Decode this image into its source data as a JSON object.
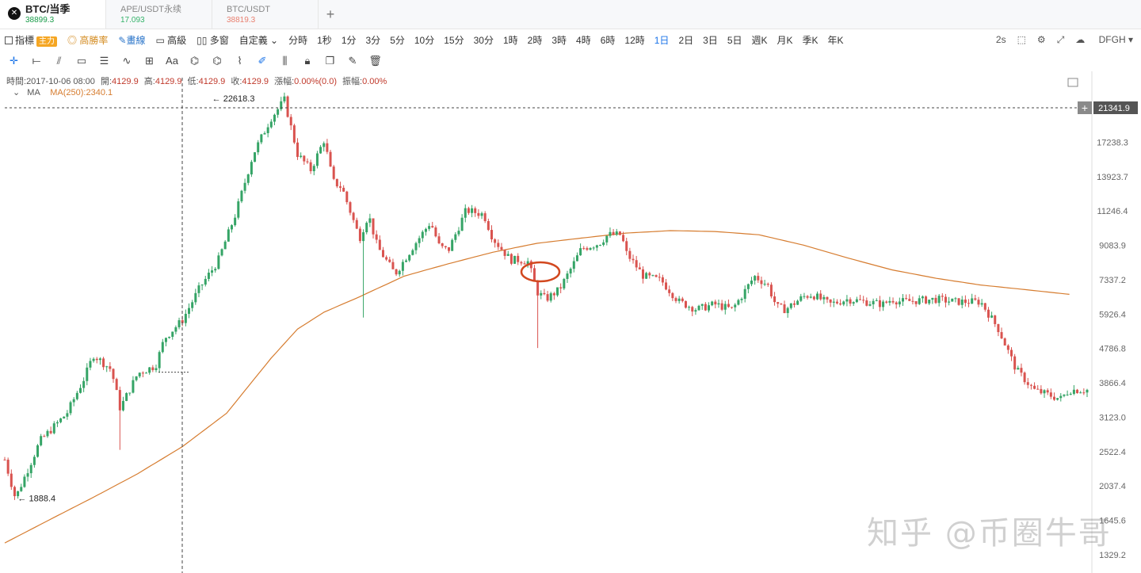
{
  "tabs": [
    {
      "name": "BTC/当季",
      "price": "38899.3",
      "price_color": "#1a9c4a"
    },
    {
      "name": "APE/USDT永续",
      "price": "17.093",
      "price_color": "#35b36a"
    },
    {
      "name": "BTC/USDT",
      "price": "38819.3",
      "price_color": "#e98070"
    }
  ],
  "toolbar": {
    "indicator": "指標",
    "main_badge": "主力",
    "win_rate": "高勝率",
    "draw": "畫線",
    "advanced": "高級",
    "multi_window": "多窗",
    "custom": "自定義",
    "periods": [
      "分時",
      "1秒",
      "1分",
      "3分",
      "5分",
      "10分",
      "15分",
      "30分",
      "1時",
      "2時",
      "3時",
      "4時",
      "6時",
      "12時",
      "1日",
      "2日",
      "3日",
      "5日",
      "週K",
      "月K",
      "季K",
      "年K"
    ],
    "active_period": "1日",
    "refresh": "2s",
    "account": "DFGH"
  },
  "drawing_tools": [
    "crosshair-icon",
    "horizontal-line-icon",
    "parallel-lines-icon",
    "rectangle-icon",
    "fib-icon",
    "wave-icon",
    "measure-icon",
    "text-icon",
    "brush-icon",
    "highlighter-icon",
    "ruler-icon",
    "pen-icon",
    "candles-icon",
    "lock-icon",
    "copy-icon",
    "note-icon",
    "trash-icon"
  ],
  "info": {
    "time_label": "時間:",
    "time": "2017-10-06 08:00",
    "open_label": "開:",
    "open": "4129.9",
    "high_label": "高:",
    "high": "4129.9",
    "low_label": "低:",
    "low": "4129.9",
    "close_label": "收:",
    "close": "4129.9",
    "change_label": "漲幅:",
    "change": "0.00%(0.0)",
    "amp_label": "振幅:",
    "amp": "0.00%"
  },
  "ma": {
    "label": "MA",
    "value": "MA(250):2340.1"
  },
  "watermark": "知乎 @币圈牛哥",
  "chart_data": {
    "type": "candlestick",
    "y_scale": "log",
    "y_ticks": [
      21341.9,
      17238.3,
      13923.7,
      11246.4,
      9083.9,
      7337.2,
      5926.4,
      4786.8,
      3866.4,
      3123.0,
      2522.4,
      2037.4,
      1645.6,
      1329.2
    ],
    "y_tick_labels": [
      "21341.9",
      "17238.3",
      "13923.7",
      "11246.4",
      "9083.9",
      "7337.2",
      "5926.4",
      "4786.8",
      "3866.4",
      "3123.0",
      "2522.4",
      "2037.4",
      "1645.6",
      "1329.2"
    ],
    "current_price": 21341.9,
    "annotations": [
      {
        "label": "← 22618.3",
        "value": 22618.3,
        "position": 0.231
      },
      {
        "label": "← 1888.4",
        "value": 1888.4,
        "position": 0.012
      }
    ],
    "series": [
      {
        "name": "price",
        "color_up": "#35a466",
        "color_down": "#d9534f",
        "anchors": [
          [
            0,
            2400
          ],
          [
            0.012,
            1888
          ],
          [
            0.04,
            2700
          ],
          [
            0.07,
            3200
          ],
          [
            0.09,
            4000
          ],
          [
            0.1,
            4600
          ],
          [
            0.12,
            4200
          ],
          [
            0.13,
            3300
          ],
          [
            0.15,
            4100
          ],
          [
            0.17,
            4300
          ],
          [
            0.18,
            5100
          ],
          [
            0.2,
            5700
          ],
          [
            0.22,
            7000
          ],
          [
            0.24,
            8200
          ],
          [
            0.26,
            11000
          ],
          [
            0.28,
            16000
          ],
          [
            0.3,
            20000
          ],
          [
            0.31,
            21500
          ],
          [
            0.315,
            22500
          ],
          [
            0.33,
            16000
          ],
          [
            0.345,
            14500
          ],
          [
            0.36,
            17500
          ],
          [
            0.37,
            13500
          ],
          [
            0.38,
            13000
          ],
          [
            0.4,
            9500
          ],
          [
            0.41,
            11000
          ],
          [
            0.42,
            9000
          ],
          [
            0.44,
            7600
          ],
          [
            0.46,
            9000
          ],
          [
            0.48,
            10500
          ],
          [
            0.49,
            9000
          ],
          [
            0.5,
            8800
          ],
          [
            0.52,
            11300
          ],
          [
            0.54,
            11000
          ],
          [
            0.55,
            9500
          ],
          [
            0.57,
            8300
          ],
          [
            0.58,
            8300
          ],
          [
            0.59,
            8200
          ],
          [
            0.6,
            6800
          ],
          [
            0.61,
            6500
          ],
          [
            0.625,
            6900
          ],
          [
            0.64,
            8000
          ],
          [
            0.65,
            8900
          ],
          [
            0.67,
            9200
          ],
          [
            0.68,
            9700
          ],
          [
            0.695,
            9700
          ],
          [
            0.7,
            8700
          ],
          [
            0.72,
            7500
          ],
          [
            0.74,
            7300
          ],
          [
            0.76,
            6400
          ],
          [
            0.78,
            6100
          ],
          [
            0.8,
            6300
          ],
          [
            0.82,
            6100
          ],
          [
            0.83,
            6600
          ],
          [
            0.845,
            7500
          ],
          [
            0.86,
            7100
          ],
          [
            0.87,
            6200
          ],
          [
            0.88,
            6100
          ],
          [
            0.9,
            6600
          ],
          [
            0.91,
            6700
          ],
          [
            0.93,
            6300
          ],
          [
            0.95,
            6500
          ],
          [
            0.97,
            6400
          ],
          [
            0.99,
            6300
          ],
          [
            1.0,
            6500
          ],
          [
            1.01,
            6400
          ],
          [
            1.05,
            6500
          ],
          [
            1.07,
            6400
          ],
          [
            1.1,
            6400
          ],
          [
            1.12,
            5400
          ],
          [
            1.14,
            4200
          ],
          [
            1.16,
            3700
          ],
          [
            1.19,
            3500
          ],
          [
            1.2,
            3700
          ],
          [
            1.22,
            3700
          ]
        ],
        "spikes": [
          [
            0.405,
            5800
          ],
          [
            0.602,
            4800
          ],
          [
            0.129,
            2550
          ]
        ]
      },
      {
        "name": "MA(250)",
        "color": "#d67c2f",
        "anchors": [
          [
            0,
            1430
          ],
          [
            0.05,
            1650
          ],
          [
            0.1,
            1900
          ],
          [
            0.15,
            2200
          ],
          [
            0.2,
            2600
          ],
          [
            0.25,
            3200
          ],
          [
            0.3,
            4500
          ],
          [
            0.33,
            5400
          ],
          [
            0.36,
            6000
          ],
          [
            0.4,
            6600
          ],
          [
            0.45,
            7500
          ],
          [
            0.5,
            8100
          ],
          [
            0.55,
            8700
          ],
          [
            0.6,
            9200
          ],
          [
            0.65,
            9500
          ],
          [
            0.7,
            9800
          ],
          [
            0.75,
            9950
          ],
          [
            0.8,
            9900
          ],
          [
            0.85,
            9700
          ],
          [
            0.9,
            9100
          ],
          [
            0.95,
            8400
          ],
          [
            1.0,
            7800
          ],
          [
            1.05,
            7400
          ],
          [
            1.1,
            7100
          ],
          [
            1.15,
            6900
          ],
          [
            1.2,
            6700
          ]
        ]
      }
    ]
  }
}
